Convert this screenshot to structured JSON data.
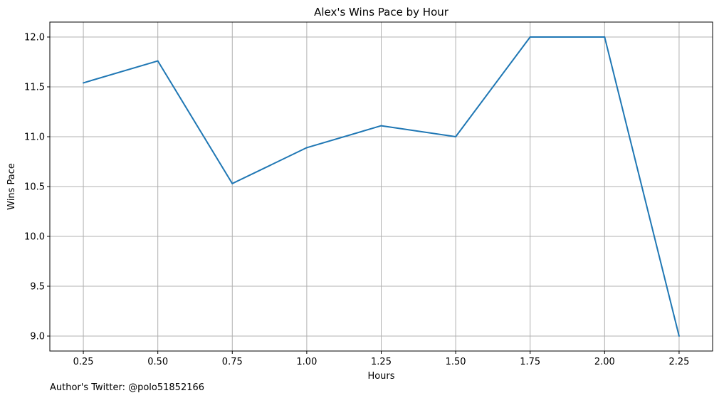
{
  "chart_data": {
    "type": "line",
    "title": "Alex's Wins Pace by Hour",
    "xlabel": "Hours",
    "ylabel": "Wins Pace",
    "x": [
      0.25,
      0.5,
      0.75,
      1.0,
      1.25,
      1.5,
      1.75,
      2.0,
      2.25
    ],
    "series": [
      {
        "values": [
          11.54,
          11.76,
          10.53,
          10.89,
          11.11,
          11.0,
          12.0,
          12.0,
          9.0
        ],
        "color": "#1f77b4"
      }
    ],
    "xticks": [
      "0.25",
      "0.50",
      "0.75",
      "1.00",
      "1.25",
      "1.50",
      "1.75",
      "2.00",
      "2.25"
    ],
    "yticks": [
      "9.0",
      "9.5",
      "10.0",
      "10.5",
      "11.0",
      "11.5",
      "12.0"
    ],
    "xlim": [
      0.1375,
      2.3625
    ],
    "ylim": [
      8.85,
      12.15
    ],
    "grid": true,
    "grid_color": "#b0b0b0"
  },
  "footer_text": "Author's Twitter: @polo51852166"
}
